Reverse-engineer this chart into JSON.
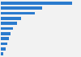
{
  "values": [
    270,
    155,
    130,
    75,
    60,
    47,
    38,
    30,
    25,
    18,
    9
  ],
  "bar_color": "#2b7bce",
  "background_color": "#f2f2f2",
  "grid_color": "#ffffff",
  "xlim": [
    0,
    300
  ],
  "figsize": [
    1.0,
    0.71
  ],
  "dpi": 100,
  "bar_height": 0.55,
  "n_bars": 11
}
